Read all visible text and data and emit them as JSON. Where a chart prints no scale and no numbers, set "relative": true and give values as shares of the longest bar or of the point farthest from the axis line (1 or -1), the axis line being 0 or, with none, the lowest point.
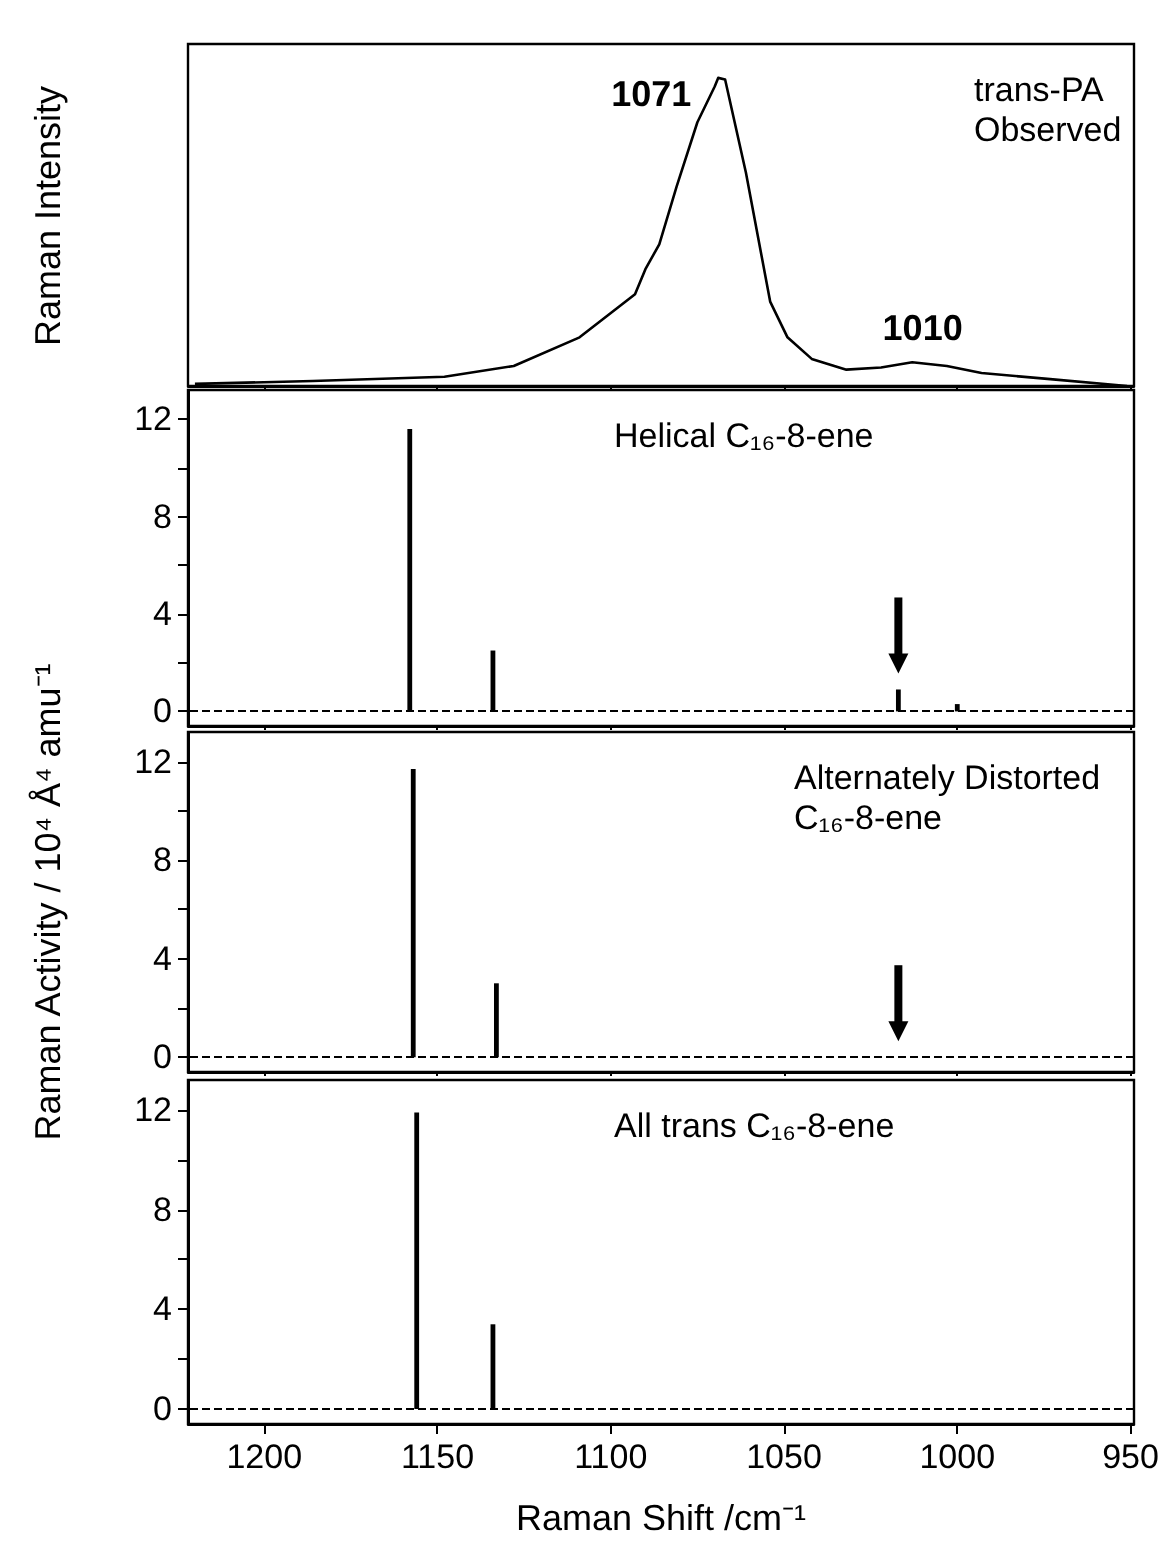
{
  "chart_data": [
    {
      "type": "line",
      "title": "trans-PA Observed",
      "ylabel": "Raman Intensity",
      "relative": true,
      "marker": "none",
      "tick_labels": false,
      "xlim": [
        1222,
        949
      ],
      "xticks": [
        1200,
        1150,
        1100,
        1050,
        1000,
        950
      ],
      "x": [
        1220,
        1186,
        1148,
        1128,
        1109,
        1093,
        1090,
        1086,
        1081,
        1075,
        1070,
        1069,
        1067,
        1061,
        1054,
        1049,
        1042,
        1032,
        1022,
        1013,
        1003,
        993,
        974,
        951
      ],
      "series": [
        {
          "color": "#000000",
          "values": [
            0.007,
            0.016,
            0.03,
            0.065,
            0.158,
            0.298,
            0.379,
            0.46,
            0.647,
            0.856,
            0.972,
            1,
            0.995,
            0.693,
            0.274,
            0.158,
            0.088,
            0.053,
            0.06,
            0.077,
            0.065,
            0.042,
            0.023,
            0
          ]
        }
      ],
      "annotations": [
        {
          "text": "1071",
          "x": 1071,
          "y": 1
        },
        {
          "text": "1010",
          "x": 1010,
          "y": 0.077
        }
      ]
    },
    {
      "type": "bar",
      "title": "Helical C₁₆-8-ene",
      "tick_labels": "y",
      "xlim": [
        1222,
        949
      ],
      "xticks": [
        1200,
        1150,
        1100,
        1050,
        1000,
        950
      ],
      "ylim": [
        -0.6,
        13.2
      ],
      "yticks": [
        0,
        {
          "value": 2,
          "label": null
        },
        4,
        {
          "value": 6,
          "label": null
        },
        8,
        {
          "value": 10,
          "label": null
        },
        12
      ],
      "x": [
        1158,
        1134,
        1017,
        1000
      ],
      "series": [
        {
          "color": "#000000",
          "values": [
            11.6,
            2.5,
            0.9,
            0.3
          ]
        }
      ],
      "ref_lines": [
        {
          "axis": "y",
          "value": 0,
          "color": "#000000",
          "line_style": "dashed"
        }
      ]
    },
    {
      "type": "bar",
      "title": "Alternately Distorted C₁₆-8-ene",
      "ylabel": "Raman Activity / 10⁴ Å⁴ amu⁻¹",
      "tick_labels": "y",
      "xlim": [
        1222,
        949
      ],
      "xticks": [
        1200,
        1150,
        1100,
        1050,
        1000,
        950
      ],
      "ylim": [
        -0.6,
        13.2
      ],
      "yticks": [
        0,
        {
          "value": 2,
          "label": null
        },
        4,
        {
          "value": 6,
          "label": null
        },
        8,
        {
          "value": 10,
          "label": null
        },
        12
      ],
      "x": [
        1157,
        1133
      ],
      "series": [
        {
          "color": "#000000",
          "values": [
            11.7,
            3.0
          ]
        }
      ],
      "ref_lines": [
        {
          "axis": "y",
          "value": 0,
          "color": "#000000",
          "line_style": "dashed"
        }
      ]
    },
    {
      "type": "bar",
      "title": "All trans C₁₆-8-ene",
      "xlabel": "Raman Shift /cm⁻¹",
      "xlim": [
        1222,
        949
      ],
      "xticks": [
        1200,
        1150,
        1100,
        1050,
        1000,
        950
      ],
      "ylim": [
        -0.6,
        13.2
      ],
      "yticks": [
        0,
        {
          "value": 2,
          "label": null
        },
        4,
        {
          "value": 6,
          "label": null
        },
        8,
        {
          "value": 10,
          "label": null
        },
        12
      ],
      "x": [
        1156,
        1134
      ],
      "series": [
        {
          "color": "#000000",
          "values": [
            11.9,
            3.4
          ]
        }
      ],
      "ref_lines": [
        {
          "axis": "y",
          "value": 0,
          "color": "#000000",
          "line_style": "dashed"
        }
      ]
    }
  ]
}
